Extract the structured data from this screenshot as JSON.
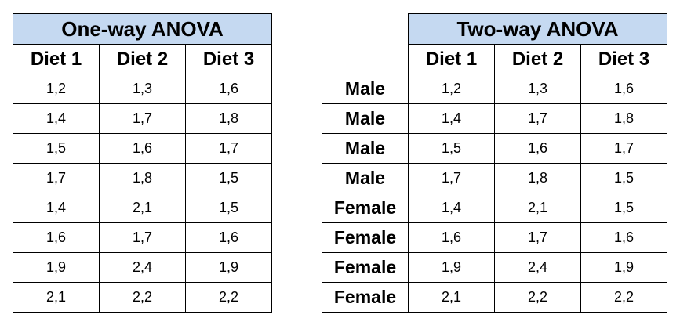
{
  "one_way": {
    "title": "One-way ANOVA",
    "headers": [
      "Diet 1",
      "Diet 2",
      "Diet 3"
    ],
    "rows": [
      [
        "1,2",
        "1,3",
        "1,6"
      ],
      [
        "1,4",
        "1,7",
        "1,8"
      ],
      [
        "1,5",
        "1,6",
        "1,7"
      ],
      [
        "1,7",
        "1,8",
        "1,5"
      ],
      [
        "1,4",
        "2,1",
        "1,5"
      ],
      [
        "1,6",
        "1,7",
        "1,6"
      ],
      [
        "1,9",
        "2,4",
        "1,9"
      ],
      [
        "2,1",
        "2,2",
        "2,2"
      ]
    ],
    "title_bg": "#c5d9f1"
  },
  "two_way": {
    "title": "Two-way ANOVA",
    "headers": [
      "Diet 1",
      "Diet 2",
      "Diet 3"
    ],
    "row_labels": [
      "Male",
      "Male",
      "Male",
      "Male",
      "Female",
      "Female",
      "Female",
      "Female"
    ],
    "rows": [
      [
        "1,2",
        "1,3",
        "1,6"
      ],
      [
        "1,4",
        "1,7",
        "1,8"
      ],
      [
        "1,5",
        "1,6",
        "1,7"
      ],
      [
        "1,7",
        "1,8",
        "1,5"
      ],
      [
        "1,4",
        "2,1",
        "1,5"
      ],
      [
        "1,6",
        "1,7",
        "1,6"
      ],
      [
        "1,9",
        "2,4",
        "1,9"
      ],
      [
        "2,1",
        "2,2",
        "2,2"
      ]
    ],
    "title_bg": "#c5d9f1"
  }
}
